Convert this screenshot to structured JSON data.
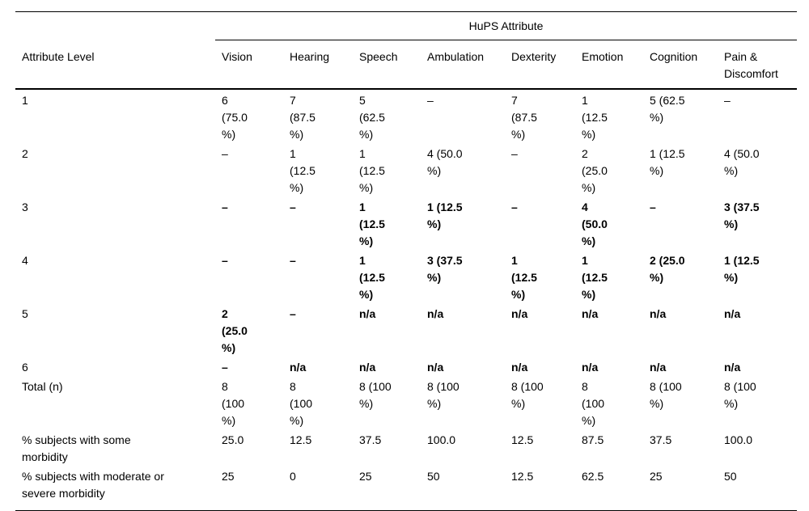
{
  "table": {
    "spanner_label": "HuPS Attribute",
    "stub_header": "Attribute Level",
    "columns": [
      "Vision",
      "Hearing",
      "Speech",
      "Ambulation",
      "Dexterity",
      "Emotion",
      "Cognition",
      "Pain &\nDiscomfort"
    ],
    "rows": [
      {
        "label": "1",
        "bold": false,
        "cells": [
          "6\n(75.0\n%)",
          "7\n(87.5\n%)",
          "5\n(62.5\n%)",
          "–",
          "7\n(87.5\n%)",
          "1\n(12.5\n%)",
          "5 (62.5\n%)",
          "–"
        ]
      },
      {
        "label": "2",
        "bold": false,
        "cells": [
          "–",
          "1\n(12.5\n%)",
          "1\n(12.5\n%)",
          "4 (50.0\n%)",
          "–",
          "2\n(25.0\n%)",
          "1 (12.5\n%)",
          "4 (50.0\n%)"
        ]
      },
      {
        "label": "3",
        "bold": true,
        "cells": [
          "–",
          "–",
          "1\n(12.5\n%)",
          "1 (12.5\n%)",
          "–",
          "4\n(50.0\n%)",
          "–",
          "3 (37.5\n%)"
        ]
      },
      {
        "label": "4",
        "bold": true,
        "cells": [
          "–",
          "–",
          "1\n(12.5\n%)",
          "3 (37.5\n%)",
          "1\n(12.5\n%)",
          "1\n(12.5\n%)",
          "2 (25.0\n%)",
          "1 (12.5\n%)"
        ]
      },
      {
        "label": "5",
        "bold": true,
        "cells": [
          "2\n(25.0\n%)",
          "–",
          "n/a",
          "n/a",
          "n/a",
          "n/a",
          "n/a",
          "n/a"
        ]
      },
      {
        "label": "6",
        "bold": true,
        "cells": [
          "–",
          "n/a",
          "n/a",
          "n/a",
          "n/a",
          "n/a",
          "n/a",
          "n/a"
        ]
      },
      {
        "label": "Total (n)",
        "bold": false,
        "cells": [
          "8\n(100\n%)",
          "8\n(100\n%)",
          "8 (100\n%)",
          "8 (100\n%)",
          "8 (100\n%)",
          "8\n(100\n%)",
          "8 (100\n%)",
          "8 (100\n%)"
        ]
      },
      {
        "label": "% subjects with some\nmorbidity",
        "bold": false,
        "cells": [
          "25.0",
          "12.5",
          "37.5",
          "100.0",
          "12.5",
          "87.5",
          "37.5",
          "100.0"
        ]
      },
      {
        "label": "% subjects with moderate or\nsevere morbidity",
        "bold": false,
        "cells": [
          "25",
          "0",
          "25",
          "50",
          "12.5",
          "62.5",
          "25",
          "50"
        ]
      }
    ]
  }
}
